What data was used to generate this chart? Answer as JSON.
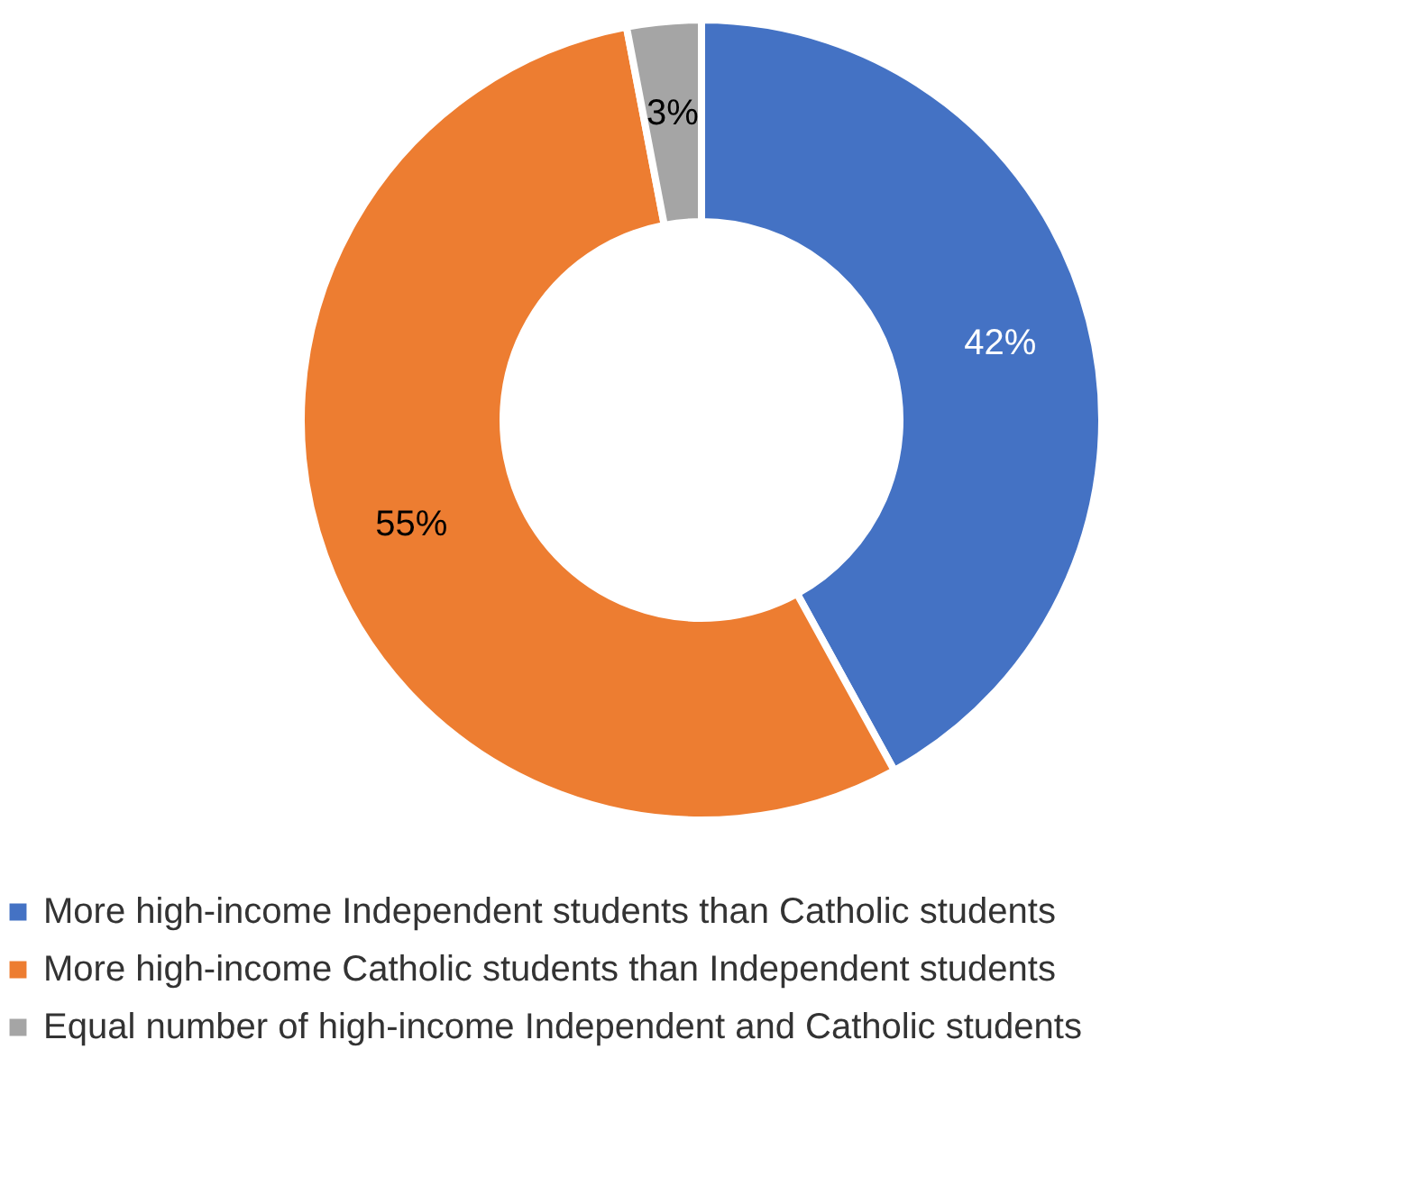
{
  "chart_data": {
    "type": "donut",
    "categories": [
      "More high-income Independent students than Catholic students",
      "More high-income Catholic students than Independent students",
      "Equal number of high-income Independent and Catholic students"
    ],
    "values": [
      42,
      55,
      3
    ],
    "colors": [
      "#4472c4",
      "#ed7d31",
      "#a5a5a5"
    ],
    "value_labels": [
      "42%",
      "55%",
      "3%"
    ],
    "legend": "bottom"
  }
}
